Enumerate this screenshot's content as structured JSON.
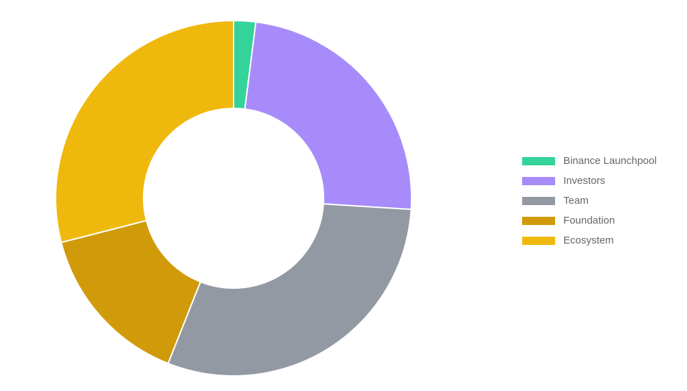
{
  "chart_data": {
    "type": "pie",
    "variant": "doughnut",
    "legend_position": "right",
    "slices": [
      {
        "label": "Binance Launchpool",
        "value": 2,
        "color": "#34d399"
      },
      {
        "label": "Investors",
        "value": 24,
        "color": "#a78bfa"
      },
      {
        "label": "Team",
        "value": 30,
        "color": "#9399a3"
      },
      {
        "label": "Foundation",
        "value": 15,
        "color": "#d09a0a"
      },
      {
        "label": "Ecosystem",
        "value": 29,
        "color": "#efb80c"
      }
    ]
  }
}
